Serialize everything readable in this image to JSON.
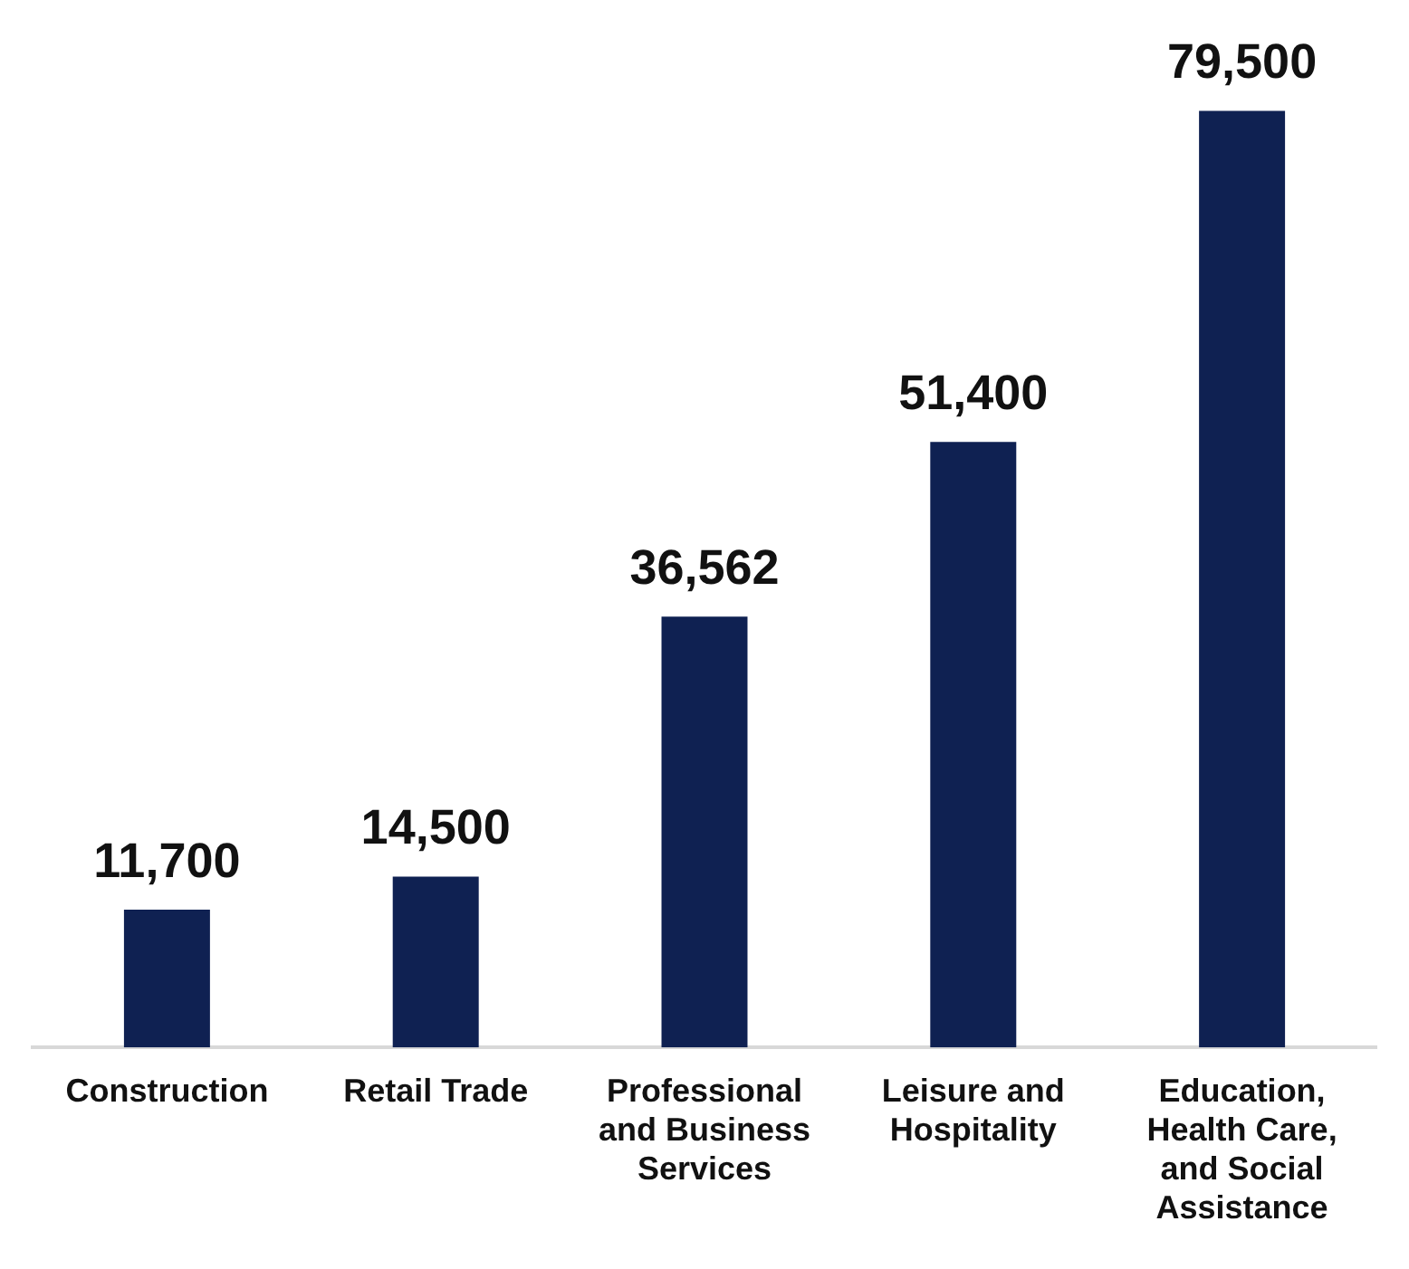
{
  "chart_data": {
    "type": "bar",
    "categories": [
      "Construction",
      "Retail Trade",
      "Professional and Business Services",
      "Leisure and Hospitality",
      "Education, Health Care, and Social Assistance"
    ],
    "values": [
      11700,
      14500,
      36562,
      51400,
      79500
    ],
    "color": "#0f2152",
    "value_labels": [
      "11,700",
      "14,500",
      "36,562",
      "51,400",
      "79,500"
    ],
    "grid": false,
    "legend": false
  }
}
